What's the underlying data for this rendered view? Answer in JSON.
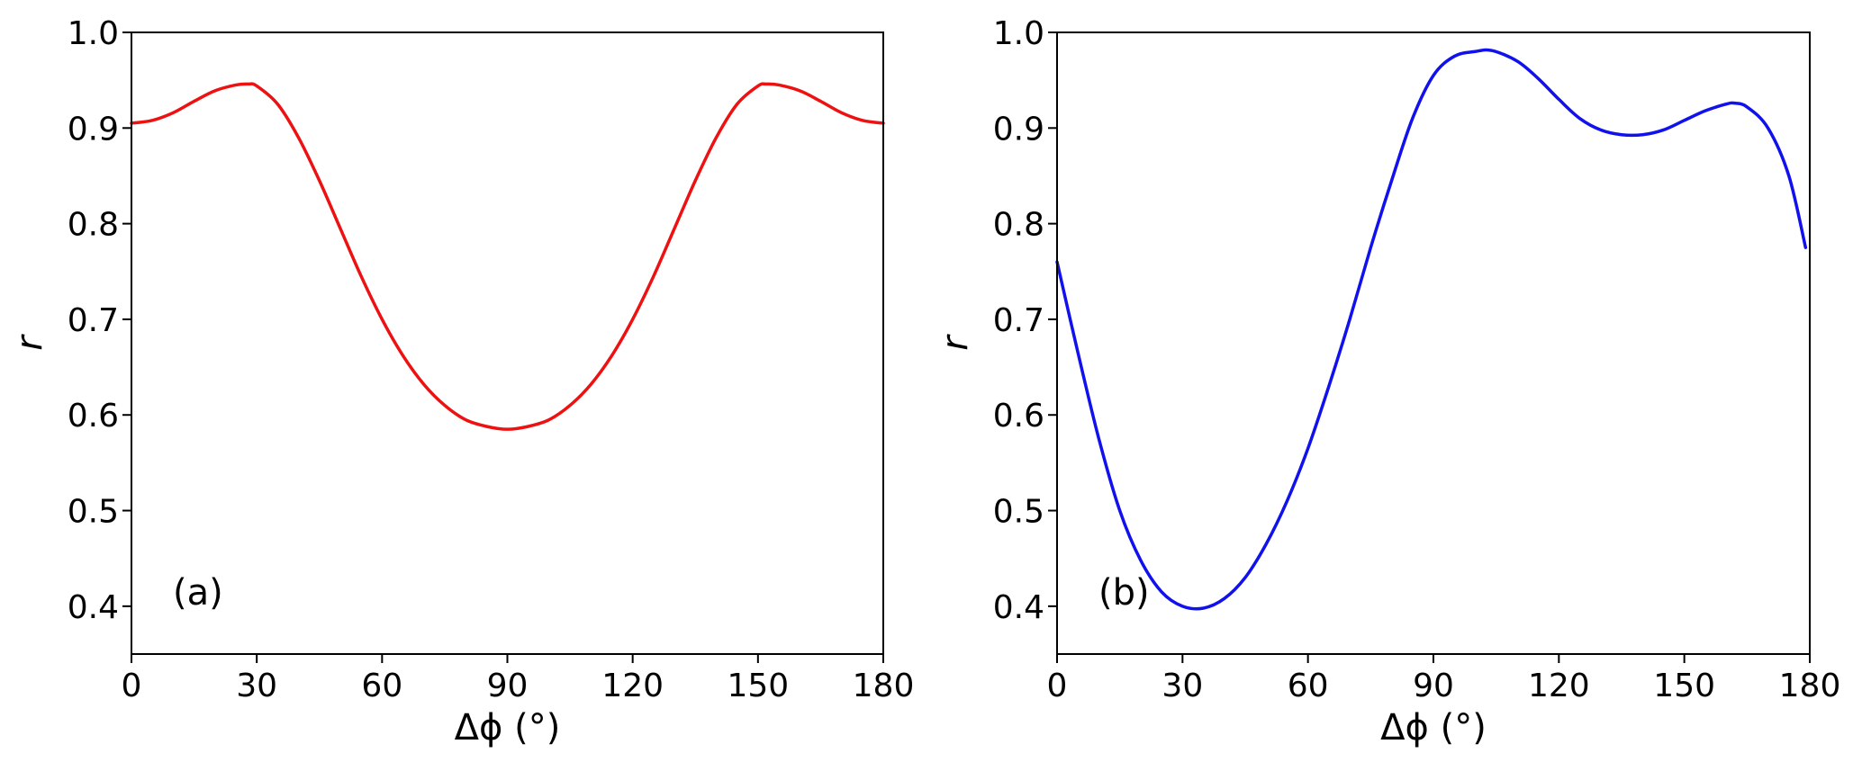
{
  "chart_data": [
    {
      "type": "line",
      "panel_label": "(a)",
      "xlabel": "Δϕ (°)",
      "ylabel": "r",
      "xlim": [
        0,
        180
      ],
      "ylim": [
        0.35,
        1.0
      ],
      "xticks": [
        0,
        30,
        60,
        90,
        120,
        150,
        180
      ],
      "yticks": [
        0.4,
        0.5,
        0.6,
        0.7,
        0.8,
        0.9,
        1.0
      ],
      "grid": false,
      "color": "#ee1111",
      "series": [
        {
          "x": [
            0,
            5,
            10,
            15,
            20,
            25,
            28,
            30,
            35,
            40,
            45,
            50,
            55,
            60,
            65,
            70,
            75,
            80,
            85,
            90,
            95,
            100,
            105,
            110,
            115,
            120,
            125,
            130,
            135,
            140,
            145,
            150,
            152,
            155,
            160,
            165,
            170,
            175,
            180
          ],
          "y": [
            0.905,
            0.908,
            0.916,
            0.928,
            0.939,
            0.945,
            0.946,
            0.944,
            0.925,
            0.89,
            0.845,
            0.795,
            0.745,
            0.7,
            0.662,
            0.632,
            0.61,
            0.595,
            0.588,
            0.585,
            0.588,
            0.595,
            0.61,
            0.632,
            0.662,
            0.7,
            0.745,
            0.795,
            0.845,
            0.89,
            0.925,
            0.944,
            0.946,
            0.945,
            0.939,
            0.928,
            0.916,
            0.908,
            0.905
          ]
        }
      ]
    },
    {
      "type": "line",
      "panel_label": "(b)",
      "xlabel": "Δϕ (°)",
      "ylabel": "r",
      "xlim": [
        0,
        180
      ],
      "ylim": [
        0.35,
        1.0
      ],
      "xticks": [
        0,
        30,
        60,
        90,
        120,
        150,
        180
      ],
      "yticks": [
        0.4,
        0.5,
        0.6,
        0.7,
        0.8,
        0.9,
        1.0
      ],
      "grid": false,
      "color": "#1111ee",
      "series": [
        {
          "x": [
            0,
            5,
            10,
            15,
            20,
            25,
            30,
            35,
            40,
            45,
            50,
            55,
            60,
            65,
            70,
            75,
            80,
            85,
            90,
            95,
            100,
            104,
            110,
            115,
            120,
            125,
            130,
            135,
            140,
            145,
            150,
            155,
            160,
            162,
            165,
            170,
            175,
            179
          ],
          "y": [
            0.76,
            0.665,
            0.575,
            0.5,
            0.448,
            0.415,
            0.4,
            0.398,
            0.408,
            0.43,
            0.465,
            0.51,
            0.565,
            0.63,
            0.7,
            0.775,
            0.845,
            0.91,
            0.955,
            0.975,
            0.98,
            0.981,
            0.97,
            0.952,
            0.93,
            0.91,
            0.898,
            0.893,
            0.893,
            0.898,
            0.908,
            0.918,
            0.925,
            0.926,
            0.922,
            0.9,
            0.85,
            0.775
          ]
        }
      ]
    }
  ]
}
